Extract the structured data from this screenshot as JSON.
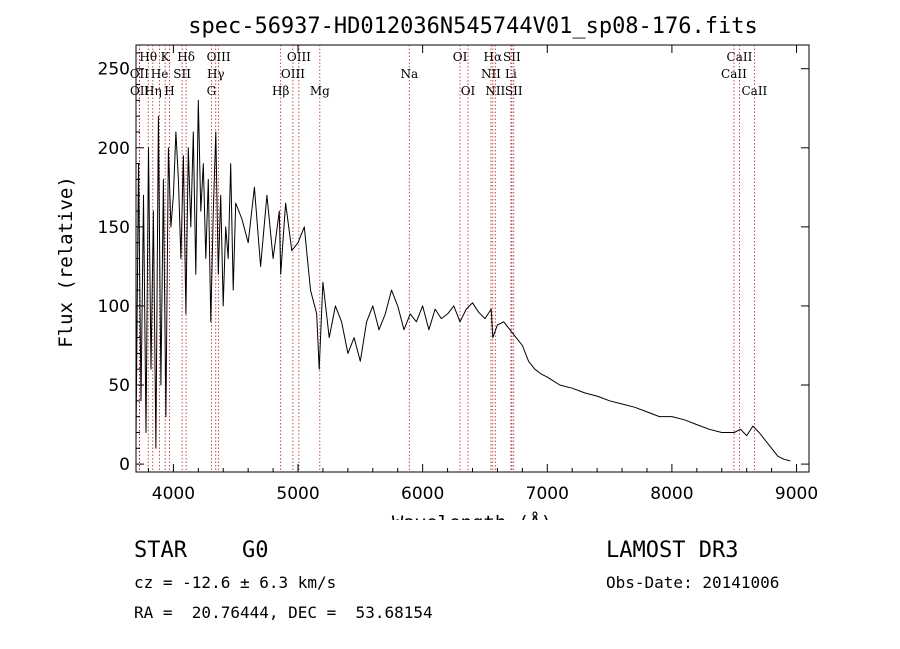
{
  "chart_data": {
    "type": "line",
    "title": "spec-56937-HD012036N545744V01_sp08-176.fits",
    "xlabel": "Wavelength (Å)",
    "ylabel": "Flux (relative)",
    "xlim": [
      3700,
      9100
    ],
    "ylim": [
      -5,
      265
    ],
    "xticks": [
      4000,
      5000,
      6000,
      7000,
      8000,
      9000
    ],
    "xtick_labels": [
      "4000",
      "5000",
      "6000",
      "7000",
      "8000",
      "9000"
    ],
    "yticks": [
      0,
      50,
      100,
      150,
      200,
      250
    ],
    "ytick_labels": [
      "0",
      "50",
      "100",
      "150",
      "200",
      "250"
    ],
    "series": [
      {
        "name": "flux",
        "color": "#000000",
        "x": [
          3700,
          3720,
          3740,
          3760,
          3780,
          3800,
          3820,
          3840,
          3860,
          3880,
          3900,
          3920,
          3940,
          3960,
          3980,
          4000,
          4020,
          4040,
          4060,
          4080,
          4100,
          4120,
          4140,
          4160,
          4180,
          4200,
          4220,
          4240,
          4260,
          4280,
          4300,
          4320,
          4340,
          4360,
          4380,
          4400,
          4420,
          4440,
          4460,
          4480,
          4500,
          4550,
          4600,
          4650,
          4700,
          4750,
          4800,
          4850,
          4861,
          4900,
          4950,
          5000,
          5050,
          5100,
          5150,
          5170,
          5200,
          5250,
          5300,
          5350,
          5400,
          5450,
          5500,
          5550,
          5600,
          5650,
          5700,
          5750,
          5800,
          5850,
          5900,
          5950,
          6000,
          6050,
          6100,
          6150,
          6200,
          6250,
          6300,
          6350,
          6400,
          6450,
          6500,
          6550,
          6563,
          6600,
          6650,
          6700,
          6750,
          6800,
          6850,
          6900,
          6950,
          7000,
          7100,
          7200,
          7300,
          7400,
          7500,
          7600,
          7700,
          7800,
          7900,
          8000,
          8100,
          8200,
          8300,
          8400,
          8500,
          8550,
          8600,
          8650,
          8700,
          8750,
          8800,
          8850,
          8900,
          8950
        ],
        "y": [
          15,
          190,
          40,
          170,
          20,
          200,
          60,
          160,
          10,
          220,
          50,
          180,
          30,
          200,
          150,
          170,
          210,
          180,
          130,
          195,
          95,
          200,
          150,
          210,
          120,
          230,
          160,
          190,
          130,
          180,
          90,
          160,
          210,
          120,
          170,
          100,
          150,
          130,
          190,
          110,
          165,
          155,
          140,
          175,
          125,
          170,
          130,
          160,
          120,
          165,
          135,
          140,
          150,
          110,
          95,
          60,
          115,
          80,
          100,
          90,
          70,
          80,
          65,
          90,
          100,
          85,
          95,
          110,
          100,
          85,
          95,
          90,
          100,
          85,
          98,
          92,
          95,
          100,
          90,
          98,
          102,
          96,
          92,
          98,
          80,
          88,
          90,
          85,
          80,
          75,
          65,
          60,
          57,
          55,
          50,
          48,
          45,
          43,
          40,
          38,
          36,
          33,
          30,
          30,
          28,
          25,
          22,
          20,
          20,
          22,
          18,
          24,
          20,
          15,
          10,
          5,
          3,
          2
        ]
      }
    ],
    "spectral_lines": [
      {
        "label": "Hθ",
        "x": 3798,
        "row": 1
      },
      {
        "label": "OII",
        "x": 3727,
        "row": 2
      },
      {
        "label": "OII",
        "x": 3729,
        "row": 3
      },
      {
        "label": "Hη",
        "x": 3835,
        "row": 3
      },
      {
        "label": "K",
        "x": 3934,
        "row": 1
      },
      {
        "label": "He",
        "x": 3889,
        "row": 2
      },
      {
        "label": "H",
        "x": 3969,
        "row": 3
      },
      {
        "label": "SII",
        "x": 4070,
        "row": 2
      },
      {
        "label": "Hδ",
        "x": 4102,
        "row": 1
      },
      {
        "label": "OIII",
        "x": 4363,
        "row": 1
      },
      {
        "label": "Hγ",
        "x": 4340,
        "row": 2
      },
      {
        "label": "G",
        "x": 4305,
        "row": 3
      },
      {
        "label": "Hβ",
        "x": 4861,
        "row": 3
      },
      {
        "label": "OIII",
        "x": 5007,
        "row": 1
      },
      {
        "label": "OIII",
        "x": 4959,
        "row": 2
      },
      {
        "label": "Mg",
        "x": 5175,
        "row": 3
      },
      {
        "label": "Na",
        "x": 5893,
        "row": 2
      },
      {
        "label": "OI",
        "x": 6300,
        "row": 1
      },
      {
        "label": "OI",
        "x": 6364,
        "row": 3
      },
      {
        "label": "Hα",
        "x": 6563,
        "row": 1
      },
      {
        "label": "NII",
        "x": 6548,
        "row": 2
      },
      {
        "label": "NII",
        "x": 6583,
        "row": 3
      },
      {
        "label": "SII",
        "x": 6716,
        "row": 1
      },
      {
        "label": "Li",
        "x": 6708,
        "row": 2
      },
      {
        "label": "SII",
        "x": 6731,
        "row": 3
      },
      {
        "label": "CaII",
        "x": 8542,
        "row": 1
      },
      {
        "label": "CaII",
        "x": 8498,
        "row": 2
      },
      {
        "label": "CaII",
        "x": 8662,
        "row": 3
      }
    ],
    "line_color": "#b22222"
  },
  "info": {
    "object_class": "STAR",
    "subclass": "G0",
    "survey": "LAMOST DR3",
    "redshift": "cz = -12.6 ± 6.3 km/s",
    "obs_date": "Obs-Date: 20141006",
    "coords": "RA =  20.76444, DEC =  53.68154"
  }
}
